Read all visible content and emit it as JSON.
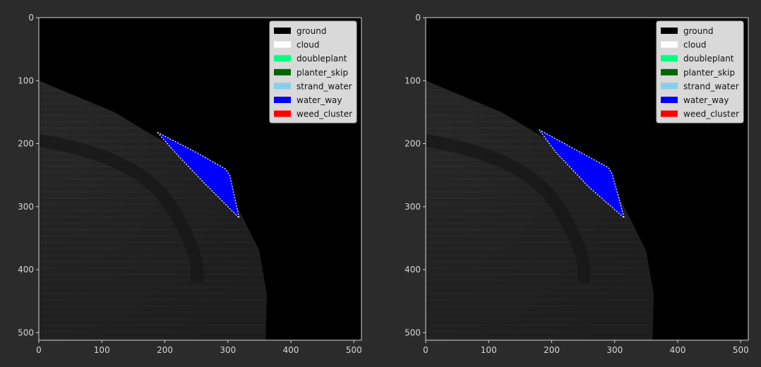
{
  "figure": {
    "background": "#2b2b2b",
    "tick_color": "#d6d6d6",
    "legend_bg": "#d9d9d9"
  },
  "chart_data": [
    {
      "type": "image-segmentation-overlay",
      "title": "",
      "xlabel": "",
      "ylabel": "",
      "xlim": [
        0,
        512
      ],
      "ylim": [
        512,
        0
      ],
      "xticks": [
        0,
        100,
        200,
        300,
        400,
        500
      ],
      "yticks": [
        0,
        100,
        200,
        300,
        400,
        500
      ],
      "grid": false,
      "legend_position": "top-right",
      "legend": [
        {
          "label": "ground",
          "color": "#000000"
        },
        {
          "label": "cloud",
          "color": "#ffffff"
        },
        {
          "label": "doubleplant",
          "color": "#00ff80"
        },
        {
          "label": "planter_skip",
          "color": "#006400"
        },
        {
          "label": "strand_water",
          "color": "#87ceeb"
        },
        {
          "label": "water_way",
          "color": "#0000ff"
        },
        {
          "label": "weed_cluster",
          "color": "#ff0000"
        }
      ],
      "field_region": [
        [
          0,
          100
        ],
        [
          60,
          125
        ],
        [
          120,
          150
        ],
        [
          170,
          180
        ],
        [
          230,
          215
        ],
        [
          290,
          250
        ],
        [
          325,
          320
        ],
        [
          350,
          370
        ],
        [
          362,
          440
        ],
        [
          360,
          512
        ],
        [
          0,
          512
        ]
      ],
      "mask": {
        "class": "water_way",
        "polygon": [
          [
            188,
            182
          ],
          [
            252,
            215
          ],
          [
            296,
            240
          ],
          [
            303,
            250
          ],
          [
            318,
            318
          ],
          [
            262,
            262
          ],
          [
            220,
            218
          ]
        ]
      }
    },
    {
      "type": "image-segmentation-overlay",
      "title": "",
      "xlabel": "",
      "ylabel": "",
      "xlim": [
        0,
        512
      ],
      "ylim": [
        512,
        0
      ],
      "xticks": [
        0,
        100,
        200,
        300,
        400,
        500
      ],
      "yticks": [
        0,
        100,
        200,
        300,
        400,
        500
      ],
      "grid": false,
      "legend_position": "top-right",
      "legend": [
        {
          "label": "ground",
          "color": "#000000"
        },
        {
          "label": "cloud",
          "color": "#ffffff"
        },
        {
          "label": "doubleplant",
          "color": "#00ff80"
        },
        {
          "label": "planter_skip",
          "color": "#006400"
        },
        {
          "label": "strand_water",
          "color": "#87ceeb"
        },
        {
          "label": "water_way",
          "color": "#0000ff"
        },
        {
          "label": "weed_cluster",
          "color": "#ff0000"
        }
      ],
      "field_region": [
        [
          0,
          100
        ],
        [
          60,
          125
        ],
        [
          120,
          150
        ],
        [
          170,
          180
        ],
        [
          230,
          215
        ],
        [
          290,
          250
        ],
        [
          325,
          320
        ],
        [
          350,
          370
        ],
        [
          362,
          440
        ],
        [
          360,
          512
        ],
        [
          0,
          512
        ]
      ],
      "mask": {
        "class": "water_way",
        "polygon": [
          [
            180,
            178
          ],
          [
            235,
            208
          ],
          [
            290,
            238
          ],
          [
            296,
            248
          ],
          [
            315,
            318
          ],
          [
            258,
            268
          ],
          [
            205,
            212
          ]
        ]
      }
    }
  ]
}
